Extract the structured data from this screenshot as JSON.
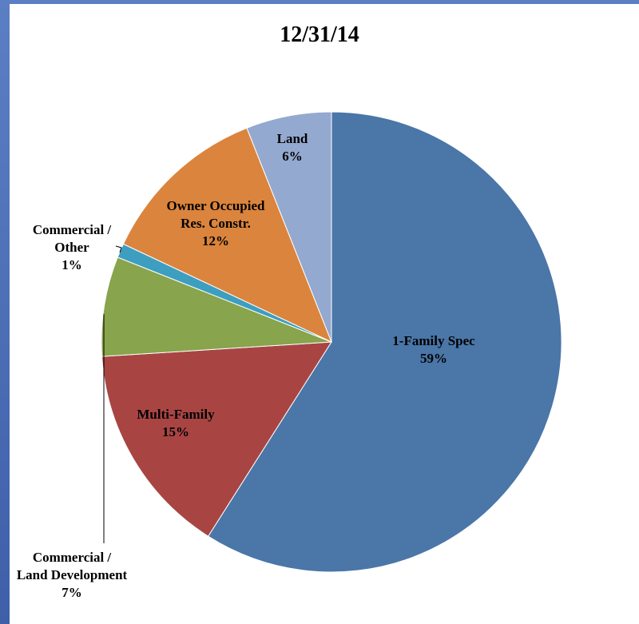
{
  "chart_data": {
    "type": "pie",
    "title": "12/31/14",
    "categories": [
      "1-Family Spec",
      "Multi-Family",
      "Commercial / Land Development",
      "Commercial / Other",
      "Owner Occupied Res. Constr.",
      "Land"
    ],
    "values": [
      59,
      15,
      7,
      1,
      12,
      6
    ],
    "value_labels": [
      "59%",
      "15%",
      "7%",
      "1%",
      "12%",
      "6%"
    ],
    "colors": [
      "#4a76a8",
      "#a84543",
      "#88a44c",
      "#3d9ec0",
      "#db843d",
      "#93a9cf"
    ]
  }
}
